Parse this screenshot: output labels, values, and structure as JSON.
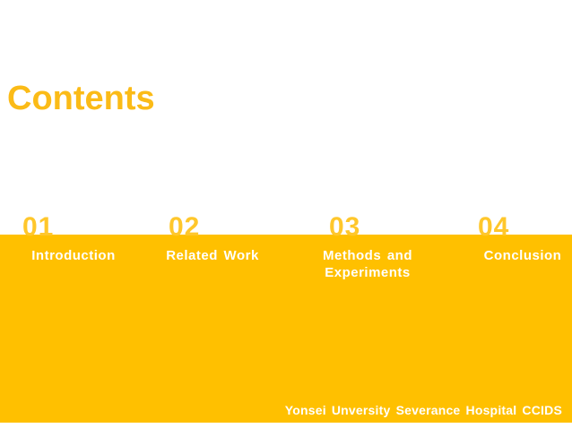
{
  "slide": {
    "title": "Contents",
    "sections": [
      {
        "number": "01",
        "label": "Introduction"
      },
      {
        "number": "02",
        "label": "Related Work"
      },
      {
        "number": "03",
        "label": "Methods and Experiments",
        "label_line1": "Methods and",
        "label_line2": "Experiments"
      },
      {
        "number": "04",
        "label": "Conclusion"
      }
    ],
    "footer": "Yonsei Unversity Severance Hospital CCIDS",
    "colors": {
      "band_gold": "#FFC000",
      "title_gold": "#FBBB17",
      "number_gold": "#FFC72B",
      "label_white": "#FFFFFF"
    }
  }
}
